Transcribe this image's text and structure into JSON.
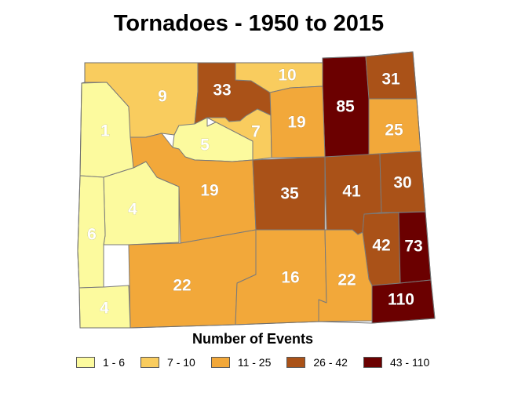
{
  "title": "Tornadoes - 1950 to 2015",
  "legend": {
    "title": "Number of Events",
    "classes": [
      {
        "label": "1 - 6",
        "color": "#fcfa9e"
      },
      {
        "label": "7 - 10",
        "color": "#f9cc5e"
      },
      {
        "label": "11 - 25",
        "color": "#f2a83a"
      },
      {
        "label": "26 - 42",
        "color": "#aa5218"
      },
      {
        "label": "43 - 110",
        "color": "#6b0000"
      }
    ]
  },
  "counties": [
    {
      "value": "1",
      "class": 0
    },
    {
      "value": "9",
      "class": 1
    },
    {
      "value": "33",
      "class": 3
    },
    {
      "value": "10",
      "class": 1
    },
    {
      "value": "85",
      "class": 4
    },
    {
      "value": "31",
      "class": 3
    },
    {
      "value": "5",
      "class": 0
    },
    {
      "value": "7",
      "class": 1
    },
    {
      "value": "19",
      "class": 2
    },
    {
      "value": "25",
      "class": 2
    },
    {
      "value": "4",
      "class": 0
    },
    {
      "value": "19",
      "class": 2
    },
    {
      "value": "35",
      "class": 3
    },
    {
      "value": "41",
      "class": 3
    },
    {
      "value": "30",
      "class": 3
    },
    {
      "value": "6",
      "class": 0
    },
    {
      "value": "42",
      "class": 3
    },
    {
      "value": "73",
      "class": 4
    },
    {
      "value": "22",
      "class": 2
    },
    {
      "value": "16",
      "class": 2
    },
    {
      "value": "22",
      "class": 2
    },
    {
      "value": "110",
      "class": 4
    },
    {
      "value": "4",
      "class": 0
    }
  ]
}
